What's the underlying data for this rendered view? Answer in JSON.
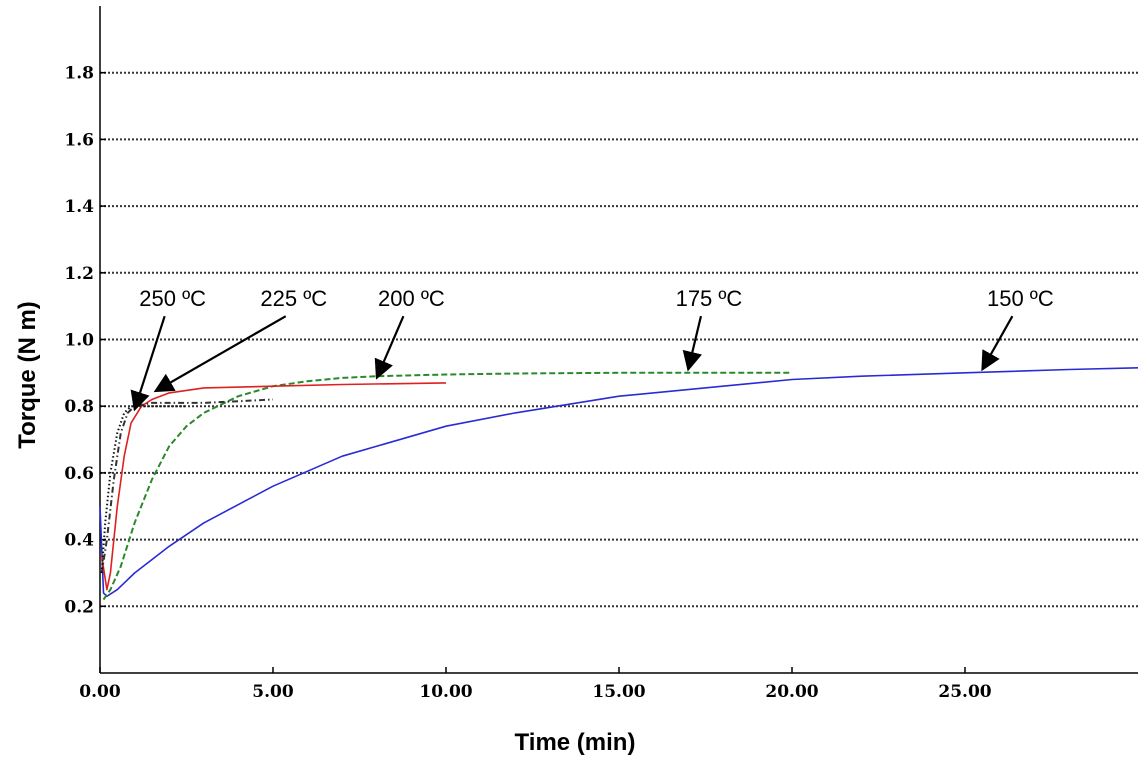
{
  "chart_data": {
    "type": "line",
    "xlabel": "Time (min)",
    "ylabel": "Torque (N m)",
    "xlim": [
      0,
      30
    ],
    "ylim": [
      0,
      2.0
    ],
    "x_ticks": [
      0,
      5,
      10,
      15,
      20,
      25
    ],
    "x_tick_labels": [
      "0.00",
      "5.00",
      "10.00",
      "15.00",
      "20.00",
      "25.00"
    ],
    "y_ticks": [
      0.2,
      0.4,
      0.6,
      0.8,
      1.0,
      1.2,
      1.4,
      1.6,
      1.8
    ],
    "y_tick_labels": [
      "0.2",
      "0.4",
      "0.6",
      "0.8",
      "1.0",
      "1.2",
      "1.4",
      "1.6",
      "1.8"
    ],
    "grid": "horizontal dotted",
    "legend": "none (inline annotations with arrows)",
    "series": [
      {
        "name": "150 ºC",
        "color": "#2b2bd6",
        "style": "solid",
        "x": [
          0.0,
          0.1,
          0.2,
          0.5,
          1.0,
          2.0,
          3.0,
          5.0,
          7.0,
          10.0,
          12.0,
          15.0,
          18.0,
          20.0,
          22.0,
          25.0,
          28.0,
          30.0
        ],
        "y": [
          0.5,
          0.24,
          0.23,
          0.25,
          0.3,
          0.38,
          0.45,
          0.56,
          0.65,
          0.74,
          0.78,
          0.83,
          0.86,
          0.88,
          0.89,
          0.9,
          0.91,
          0.915
        ]
      },
      {
        "name": "175 ºC",
        "color": "#2a8a2a",
        "style": "dashed",
        "x": [
          0.1,
          0.3,
          0.6,
          1.0,
          1.5,
          2.0,
          2.5,
          3.0,
          4.0,
          5.0,
          6.0,
          7.0,
          8.0,
          10.0,
          12.0,
          15.0,
          18.0,
          20.0
        ],
        "y": [
          0.22,
          0.25,
          0.32,
          0.45,
          0.58,
          0.68,
          0.74,
          0.78,
          0.83,
          0.86,
          0.875,
          0.885,
          0.89,
          0.895,
          0.898,
          0.9,
          0.9,
          0.9
        ]
      },
      {
        "name": "200 ºC",
        "color": "#e02020",
        "style": "solid",
        "x": [
          0.05,
          0.2,
          0.3,
          0.5,
          0.7,
          0.9,
          1.2,
          1.5,
          2.0,
          3.0,
          5.0,
          7.0,
          10.0
        ],
        "y": [
          0.35,
          0.25,
          0.3,
          0.5,
          0.65,
          0.75,
          0.8,
          0.82,
          0.84,
          0.855,
          0.86,
          0.865,
          0.87
        ]
      },
      {
        "name": "225 ºC",
        "color": "#333333",
        "style": "dash-dot",
        "x": [
          0.05,
          0.2,
          0.4,
          0.6,
          0.8,
          1.0,
          1.5,
          2.0,
          3.0,
          4.0,
          5.0
        ],
        "y": [
          0.3,
          0.4,
          0.58,
          0.72,
          0.78,
          0.8,
          0.81,
          0.81,
          0.81,
          0.815,
          0.82
        ]
      },
      {
        "name": "250 ºC",
        "color": "#111111",
        "style": "dotted",
        "x": [
          0.05,
          0.15,
          0.3,
          0.5,
          0.7,
          0.9,
          1.2,
          1.6,
          2.0,
          2.5
        ],
        "y": [
          0.3,
          0.45,
          0.6,
          0.72,
          0.78,
          0.8,
          0.8,
          0.8,
          0.8,
          0.8
        ]
      }
    ],
    "annotations": [
      {
        "text": "250 ºC",
        "label_at": [
          2.1,
          1.1
        ],
        "arrow_to": [
          1.0,
          0.79
        ]
      },
      {
        "text": "225 ºC",
        "label_at": [
          5.6,
          1.1
        ],
        "arrow_to": [
          1.6,
          0.845
        ]
      },
      {
        "text": "200 ºC",
        "label_at": [
          9.0,
          1.1
        ],
        "arrow_to": [
          8.0,
          0.885
        ]
      },
      {
        "text": "175 ºC",
        "label_at": [
          17.6,
          1.1
        ],
        "arrow_to": [
          17.0,
          0.91
        ]
      },
      {
        "text": "150 ºC",
        "label_at": [
          26.6,
          1.1
        ],
        "arrow_to": [
          25.5,
          0.91
        ]
      }
    ]
  }
}
